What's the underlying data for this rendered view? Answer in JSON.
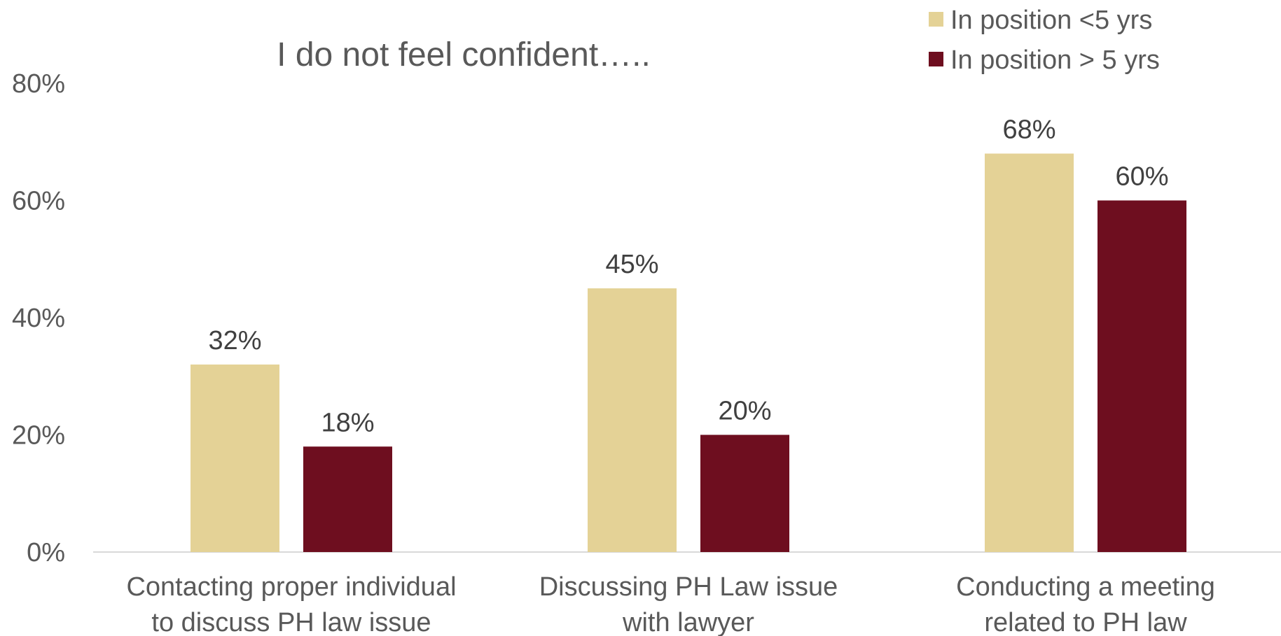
{
  "chart_data": {
    "type": "bar",
    "title": "I do not feel confident…..",
    "categories": [
      [
        "Contacting proper individual",
        "to discuss PH law issue"
      ],
      [
        "Discussing PH Law issue",
        "with lawyer"
      ],
      [
        "Conducting a meeting",
        "related to PH law"
      ]
    ],
    "series": [
      {
        "name": "In position <5 yrs",
        "values": [
          32,
          45,
          68
        ],
        "labels": [
          "32%",
          "45%",
          "68%"
        ],
        "color": "#E4D296"
      },
      {
        "name": "In position > 5 yrs",
        "values": [
          18,
          20,
          60
        ],
        "labels": [
          "18%",
          "20%",
          "60%"
        ],
        "color": "#6E0E1F"
      }
    ],
    "ylim": [
      0,
      80
    ],
    "yticks": [
      0,
      20,
      40,
      60,
      80
    ],
    "ytick_labels": [
      "0%",
      "20%",
      "40%",
      "60%",
      "80%"
    ],
    "grid": false,
    "legend_position": "top-right"
  }
}
